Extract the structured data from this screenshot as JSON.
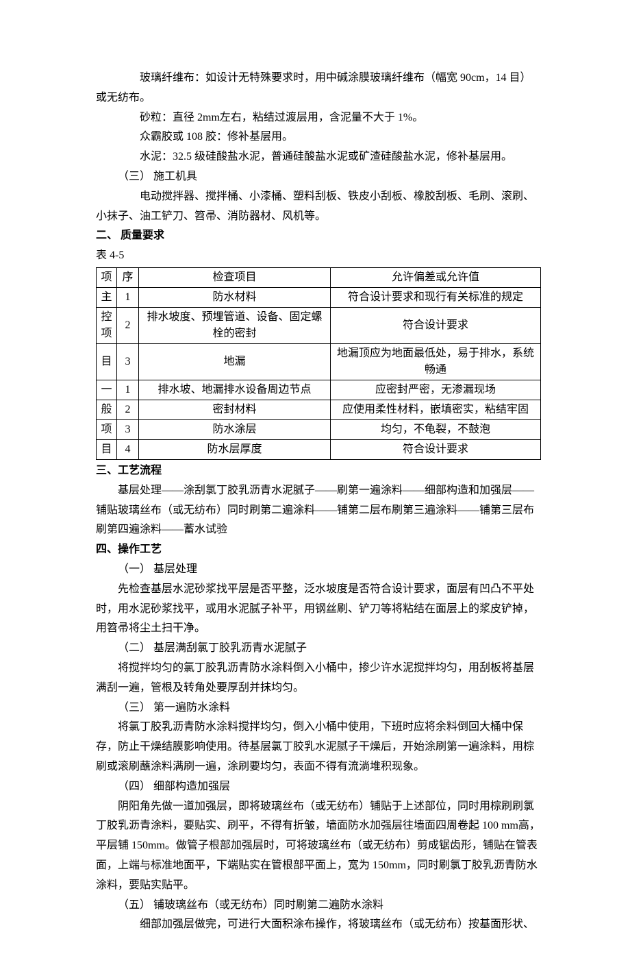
{
  "intro": {
    "p1": "玻璃纤维布：如设计无特殊要求时，用中碱涂膜玻璃纤维布（幅宽 90cm，14 目）或无纺布。",
    "p2": "砂粒：直径 2mm左右，粘结过渡层用，含泥量不大于 1%。",
    "p3": "众霸胶或 108 胶：修补基层用。",
    "p4": "水泥：32.5 级硅酸盐水泥，普通硅酸盐水泥或矿渣硅酸盐水泥，修补基层用。",
    "s3_label": "（三） 施工机具",
    "p5": "电动搅拌器、搅拌桶、小漆桶、塑料刮板、铁皮小刮板、橡胶刮板、毛刷、滚刷、小抹子、油工铲刀、笤帚、消防器材、风机等。"
  },
  "section2": {
    "heading": "二、    质量要求",
    "table_label": "表 4-5"
  },
  "table": {
    "header": {
      "c1": "项",
      "c2": "序",
      "c3": "检查项目",
      "c4": "允许偏差或允许值"
    },
    "group1_label_a": "主",
    "group1_label_b": "控",
    "group1_label_c": "项",
    "group1_label_d": "目",
    "group2_label_a": "一",
    "group2_label_b": "般",
    "group2_label_c": "项",
    "group2_label_d": "目",
    "rows": [
      {
        "seq": "1",
        "item": "防水材料",
        "val": "符合设计要求和现行有关标准的规定"
      },
      {
        "seq": "2",
        "item": "排水坡度、预埋管道、设备、固定螺栓的密封",
        "val": "符合设计要求"
      },
      {
        "seq": "3",
        "item": "地漏",
        "val": "地漏顶应为地面最低处，易于排水，系统畅通"
      },
      {
        "seq": "1",
        "item": "排水坡、地漏排水设备周边节点",
        "val": "应密封严密，无渗漏现场"
      },
      {
        "seq": "2",
        "item": "密封材料",
        "val": "应使用柔性材料，嵌填密实，粘结牢固"
      },
      {
        "seq": "3",
        "item": "防水涂层",
        "val": "均匀，不龟裂，不鼓泡"
      },
      {
        "seq": "4",
        "item": "防水层厚度",
        "val": "符合设计要求"
      }
    ]
  },
  "section3": {
    "heading": "三、工艺流程",
    "p1": "基层处理——涂刮氯丁胶乳沥青水泥腻子——刷第一遍涂料——细部构造和加强层——铺贴玻璃丝布（或无纺布）同时刷第二遍涂料——铺第二层布刷第三遍涂料——铺第三层布刷第四遍涂料——蓄水试验"
  },
  "section4": {
    "heading": "四、操作工艺",
    "s1_label": "（一） 基层处理",
    "s1_p": "先检查基层水泥砂浆找平层是否平整，泛水坡度是否符合设计要求，面层有凹凸不平处时，用水泥砂浆找平，或用水泥腻子补平，用钢丝刷、铲刀等将粘结在面层上的浆皮铲掉，用笤帚将尘土扫干净。",
    "s2_label": "（二） 基层满刮氯丁胶乳沥青水泥腻子",
    "s2_p": "将搅拌均匀的氯丁胶乳沥青防水涂料倒入小桶中，掺少许水泥搅拌均匀，用刮板将基层满刮一遍，管根及转角处要厚刮并抹均匀。",
    "s3_label": "（三） 第一遍防水涂料",
    "s3_p": "将氯丁胶乳沥青防水涂料搅拌均匀，倒入小桶中使用，下班时应将余料倒回大桶中保存，防止干燥结膜影响使用。待基层氯丁胶乳水泥腻子干燥后，开始涂刷第一遍涂料，用棕刷或滚刷蘸涂料满刷一遍，涂刷要均匀，表面不得有流淌堆积现象。",
    "s4_label": "（四） 细部构造加强层",
    "s4_p": "阴阳角先做一道加强层，即将玻璃丝布（或无纺布）铺贴于上述部位，同时用棕刷刷氯丁胶乳沥青涂料，要贴实、刷平，不得有折皱，墙面防水加强层往墙面四周卷起 100 mm高，平层铺 150mm。做管子根部加强层时，可将玻璃丝布（或无纺布）剪成锯齿形，铺贴在管表面，上端与标准地面平，下端贴实在管根部平面上，宽为 150mm，同时刷氯丁胶乳沥青防水涂料，要贴实贴平。",
    "s5_label": "（五） 铺玻璃丝布（或无纺布）同时刷第二遍防水涂料",
    "s5_p": "细部加强层做完，可进行大面积涂布操作，将玻璃丝布（或无纺布）按基面形状、"
  }
}
